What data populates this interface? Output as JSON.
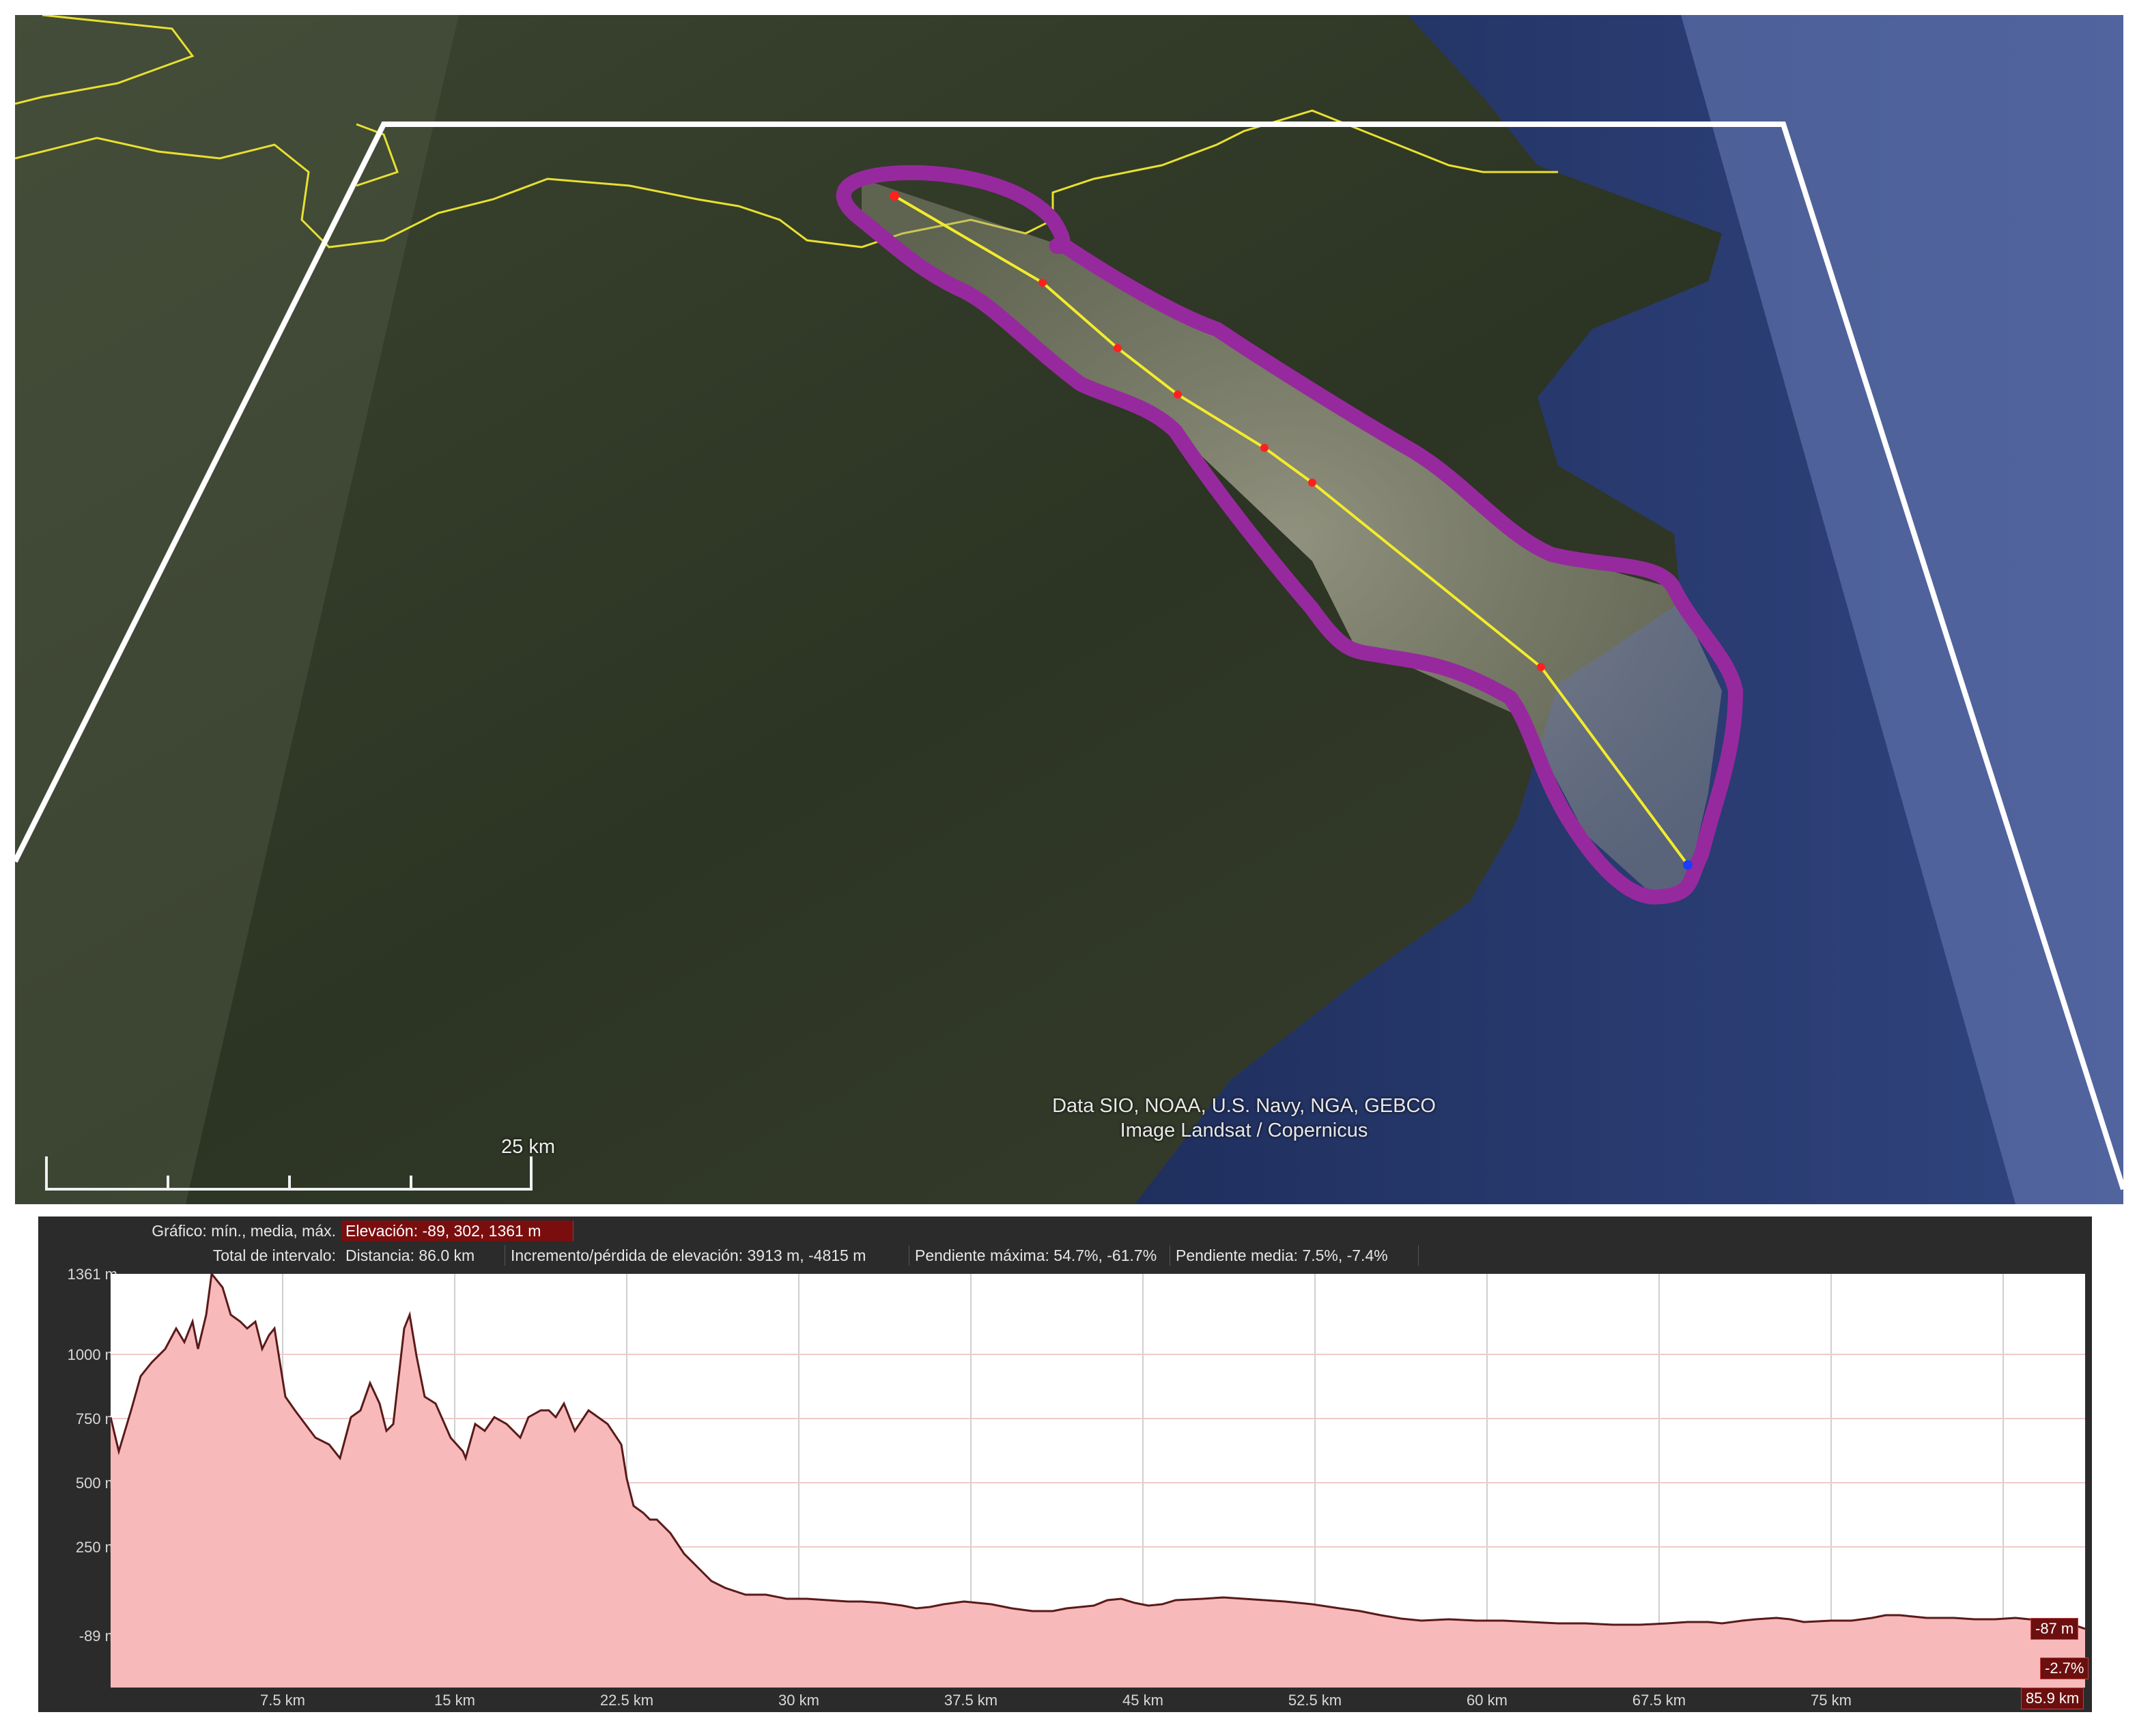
{
  "map": {
    "attribution_line1": "Data SIO, NOAA, U.S. Navy, NGA, GEBCO",
    "attribution_line2": "Image Landsat / Copernicus",
    "scale_label": "25 km"
  },
  "profile": {
    "graph_label": "Gráfico: mín., media, máx.",
    "elevation": "Elevación: -89, 302, 1361 m",
    "interval_label": "Total de intervalo:",
    "distance": "Distancia: 86.0 km",
    "gain_loss": "Incremento/pérdida de elevación: 3913 m, -4815 m",
    "max_slope": "Pendiente máxima: 54.7%, -61.7%",
    "avg_slope": "Pendiente media: 7.5%, -7.4%",
    "y_labels": [
      "1361 m",
      "1000 m",
      "750 m",
      "500 m",
      "250 m",
      "-89 m"
    ],
    "x_labels": [
      "7.5 km",
      "15 km",
      "22.5 km",
      "30 km",
      "37.5 km",
      "45 km",
      "52.5 km",
      "60 km",
      "67.5 km",
      "75 km"
    ],
    "cursor_elevation": "-87 m",
    "cursor_slope": "-2.7%",
    "cursor_distance": "85.9 km",
    "colors": {
      "fill": "#f7b9b9",
      "line": "#5a1a1a",
      "highlight": "#7a0e0e"
    }
  }
}
